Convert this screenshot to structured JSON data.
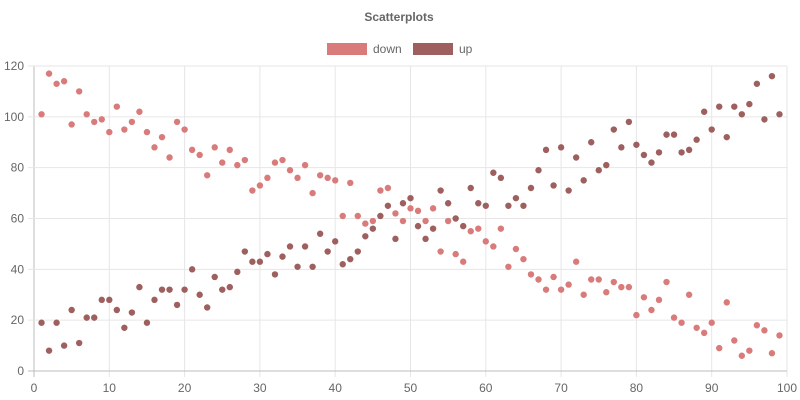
{
  "chart_data": {
    "type": "scatter",
    "title": "Scatterplots",
    "legend_position": "top",
    "grid": true,
    "xlim": [
      0,
      100
    ],
    "ylim": [
      0,
      120
    ],
    "x_ticks": [
      0,
      10,
      20,
      30,
      40,
      50,
      60,
      70,
      80,
      90,
      100
    ],
    "y_ticks": [
      0,
      20,
      40,
      60,
      80,
      100,
      120
    ],
    "series": [
      {
        "name": "down",
        "color": "#d97b7b",
        "points": [
          [
            1,
            101
          ],
          [
            2,
            117
          ],
          [
            3,
            113
          ],
          [
            4,
            114
          ],
          [
            5,
            97
          ],
          [
            6,
            110
          ],
          [
            7,
            101
          ],
          [
            8,
            98
          ],
          [
            9,
            99
          ],
          [
            10,
            94
          ],
          [
            11,
            104
          ],
          [
            12,
            95
          ],
          [
            13,
            98
          ],
          [
            14,
            102
          ],
          [
            15,
            94
          ],
          [
            16,
            88
          ],
          [
            17,
            92
          ],
          [
            18,
            84
          ],
          [
            19,
            98
          ],
          [
            20,
            95
          ],
          [
            21,
            87
          ],
          [
            22,
            85
          ],
          [
            23,
            77
          ],
          [
            24,
            88
          ],
          [
            25,
            82
          ],
          [
            26,
            87
          ],
          [
            27,
            81
          ],
          [
            28,
            83
          ],
          [
            29,
            71
          ],
          [
            30,
            73
          ],
          [
            31,
            76
          ],
          [
            32,
            82
          ],
          [
            33,
            83
          ],
          [
            34,
            79
          ],
          [
            35,
            76
          ],
          [
            36,
            81
          ],
          [
            37,
            70
          ],
          [
            38,
            77
          ],
          [
            39,
            76
          ],
          [
            40,
            75
          ],
          [
            41,
            61
          ],
          [
            42,
            74
          ],
          [
            43,
            61
          ],
          [
            44,
            58
          ],
          [
            45,
            59
          ],
          [
            46,
            71
          ],
          [
            47,
            72
          ],
          [
            48,
            62
          ],
          [
            49,
            59
          ],
          [
            50,
            64
          ],
          [
            51,
            63
          ],
          [
            52,
            59
          ],
          [
            53,
            64
          ],
          [
            54,
            47
          ],
          [
            55,
            59
          ],
          [
            56,
            46
          ],
          [
            57,
            43
          ],
          [
            58,
            55
          ],
          [
            59,
            56
          ],
          [
            60,
            51
          ],
          [
            61,
            49
          ],
          [
            62,
            56
          ],
          [
            63,
            41
          ],
          [
            64,
            48
          ],
          [
            65,
            44
          ],
          [
            66,
            38
          ],
          [
            67,
            36
          ],
          [
            68,
            32
          ],
          [
            69,
            37
          ],
          [
            70,
            32
          ],
          [
            71,
            34
          ],
          [
            72,
            43
          ],
          [
            73,
            30
          ],
          [
            74,
            36
          ],
          [
            75,
            36
          ],
          [
            76,
            31
          ],
          [
            77,
            35
          ],
          [
            78,
            33
          ],
          [
            79,
            33
          ],
          [
            80,
            22
          ],
          [
            81,
            29
          ],
          [
            82,
            24
          ],
          [
            83,
            28
          ],
          [
            84,
            35
          ],
          [
            85,
            21
          ],
          [
            86,
            19
          ],
          [
            87,
            30
          ],
          [
            88,
            17
          ],
          [
            89,
            15
          ],
          [
            90,
            19
          ],
          [
            91,
            9
          ],
          [
            92,
            27
          ],
          [
            93,
            12
          ],
          [
            94,
            6
          ],
          [
            95,
            8
          ],
          [
            96,
            18
          ],
          [
            97,
            16
          ],
          [
            98,
            7
          ],
          [
            99,
            14
          ]
        ]
      },
      {
        "name": "up",
        "color": "#9e5f5f",
        "points": [
          [
            1,
            19
          ],
          [
            2,
            8
          ],
          [
            3,
            19
          ],
          [
            4,
            10
          ],
          [
            5,
            24
          ],
          [
            6,
            11
          ],
          [
            7,
            21
          ],
          [
            8,
            21
          ],
          [
            9,
            28
          ],
          [
            10,
            28
          ],
          [
            11,
            24
          ],
          [
            12,
            17
          ],
          [
            13,
            23
          ],
          [
            14,
            33
          ],
          [
            15,
            19
          ],
          [
            16,
            28
          ],
          [
            17,
            32
          ],
          [
            18,
            32
          ],
          [
            19,
            26
          ],
          [
            20,
            32
          ],
          [
            21,
            40
          ],
          [
            22,
            30
          ],
          [
            23,
            25
          ],
          [
            24,
            37
          ],
          [
            25,
            32
          ],
          [
            26,
            33
          ],
          [
            27,
            39
          ],
          [
            28,
            47
          ],
          [
            29,
            43
          ],
          [
            30,
            43
          ],
          [
            31,
            46
          ],
          [
            32,
            38
          ],
          [
            33,
            45
          ],
          [
            34,
            49
          ],
          [
            35,
            41
          ],
          [
            36,
            49
          ],
          [
            37,
            41
          ],
          [
            38,
            54
          ],
          [
            39,
            47
          ],
          [
            40,
            51
          ],
          [
            41,
            42
          ],
          [
            42,
            44
          ],
          [
            43,
            47
          ],
          [
            44,
            53
          ],
          [
            45,
            56
          ],
          [
            46,
            61
          ],
          [
            47,
            65
          ],
          [
            48,
            52
          ],
          [
            49,
            66
          ],
          [
            50,
            68
          ],
          [
            51,
            57
          ],
          [
            52,
            52
          ],
          [
            53,
            56
          ],
          [
            54,
            71
          ],
          [
            55,
            66
          ],
          [
            56,
            60
          ],
          [
            57,
            57
          ],
          [
            58,
            72
          ],
          [
            59,
            66
          ],
          [
            60,
            65
          ],
          [
            61,
            78
          ],
          [
            62,
            76
          ],
          [
            63,
            65
          ],
          [
            64,
            68
          ],
          [
            65,
            65
          ],
          [
            66,
            72
          ],
          [
            67,
            79
          ],
          [
            68,
            87
          ],
          [
            69,
            73
          ],
          [
            70,
            88
          ],
          [
            71,
            71
          ],
          [
            72,
            84
          ],
          [
            73,
            75
          ],
          [
            74,
            90
          ],
          [
            75,
            79
          ],
          [
            76,
            81
          ],
          [
            77,
            95
          ],
          [
            78,
            88
          ],
          [
            79,
            98
          ],
          [
            80,
            89
          ],
          [
            81,
            85
          ],
          [
            82,
            82
          ],
          [
            83,
            86
          ],
          [
            84,
            93
          ],
          [
            85,
            93
          ],
          [
            86,
            86
          ],
          [
            87,
            87
          ],
          [
            88,
            91
          ],
          [
            89,
            102
          ],
          [
            90,
            95
          ],
          [
            91,
            104
          ],
          [
            92,
            92
          ],
          [
            93,
            104
          ],
          [
            94,
            101
          ],
          [
            95,
            105
          ],
          [
            96,
            113
          ],
          [
            97,
            99
          ],
          [
            98,
            116
          ],
          [
            99,
            101
          ]
        ]
      }
    ]
  }
}
